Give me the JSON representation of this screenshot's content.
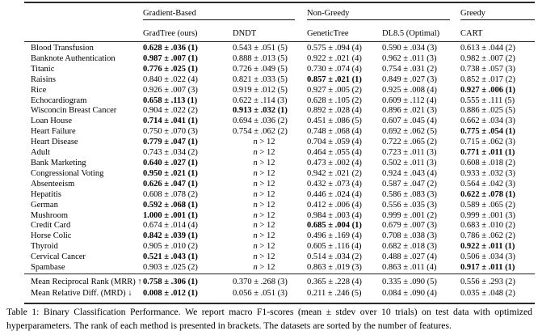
{
  "table": {
    "groups": [
      {
        "label": "Gradient-Based"
      },
      {
        "label": "Non-Greedy"
      },
      {
        "label": "Greedy"
      }
    ],
    "columns": [
      "GradTree (ours)",
      "DNDT",
      "GeneticTree",
      "DL8.5 (Optimal)",
      "CART"
    ],
    "rows": [
      {
        "dataset": "Blood Transfusion",
        "cells": [
          {
            "t": "0.628 ± .036 (1)",
            "b": 1
          },
          {
            "t": "0.543 ± .051 (5)"
          },
          {
            "t": "0.575 ± .094 (4)"
          },
          {
            "t": "0.590 ± .034 (3)"
          },
          {
            "t": "0.613 ± .044 (2)"
          }
        ]
      },
      {
        "dataset": "Banknote Authentication",
        "cells": [
          {
            "t": "0.987 ± .007 (1)",
            "b": 1
          },
          {
            "t": "0.888 ± .013 (5)"
          },
          {
            "t": "0.922 ± .021 (4)"
          },
          {
            "t": "0.962 ± .011 (3)"
          },
          {
            "t": "0.982 ± .007 (2)"
          }
        ]
      },
      {
        "dataset": "Titanic",
        "cells": [
          {
            "t": "0.776 ± .025 (1)",
            "b": 1
          },
          {
            "t": "0.726 ± .049 (5)"
          },
          {
            "t": "0.730 ± .074 (4)"
          },
          {
            "t": "0.754 ± .031 (2)"
          },
          {
            "t": "0.738 ± .057 (3)"
          }
        ]
      },
      {
        "dataset": "Raisins",
        "cells": [
          {
            "t": "0.840 ± .022 (4)"
          },
          {
            "t": "0.821 ± .033 (5)"
          },
          {
            "t": "0.857 ± .021 (1)",
            "b": 1
          },
          {
            "t": "0.849 ± .027 (3)"
          },
          {
            "t": "0.852 ± .017 (2)"
          }
        ]
      },
      {
        "dataset": "Rice",
        "cells": [
          {
            "t": "0.926 ± .007 (3)"
          },
          {
            "t": "0.919 ± .012 (5)"
          },
          {
            "t": "0.927 ± .005 (2)"
          },
          {
            "t": "0.925 ± .008 (4)"
          },
          {
            "t": "0.927 ± .006 (1)",
            "b": 1
          }
        ]
      },
      {
        "dataset": "Echocardiogram",
        "cells": [
          {
            "t": "0.658 ± .113 (1)",
            "b": 1
          },
          {
            "t": "0.622 ± .114 (3)"
          },
          {
            "t": "0.628 ± .105 (2)"
          },
          {
            "t": "0.609 ± .112 (4)"
          },
          {
            "t": "0.555 ± .111 (5)"
          }
        ]
      },
      {
        "dataset": "Wisconcin Breast Cancer",
        "cells": [
          {
            "t": "0.904 ± .022 (2)"
          },
          {
            "t": "0.913 ± .032 (1)",
            "b": 1
          },
          {
            "t": "0.892 ± .028 (4)"
          },
          {
            "t": "0.896 ± .021 (3)"
          },
          {
            "t": "0.886 ± .025 (5)"
          }
        ]
      },
      {
        "dataset": "Loan House",
        "cells": [
          {
            "t": "0.714 ± .041 (1)",
            "b": 1
          },
          {
            "t": "0.694 ± .036 (2)"
          },
          {
            "t": "0.451 ± .086 (5)"
          },
          {
            "t": "0.607 ± .045 (4)"
          },
          {
            "t": "0.662 ± .034 (3)"
          }
        ]
      },
      {
        "dataset": "Heart Failure",
        "cells": [
          {
            "t": "0.750 ± .070 (3)"
          },
          {
            "t": "0.754 ± .062 (2)"
          },
          {
            "t": "0.748 ± .068 (4)"
          },
          {
            "t": "0.692 ± .062 (5)"
          },
          {
            "t": "0.775 ± .054 (1)",
            "b": 1
          }
        ]
      },
      {
        "dataset": "Heart Disease",
        "cells": [
          {
            "t": "0.779 ± .047 (1)",
            "b": 1
          },
          {
            "t": "n > 12",
            "m": 1
          },
          {
            "t": "0.704 ± .059 (4)"
          },
          {
            "t": "0.722 ± .065 (2)"
          },
          {
            "t": "0.715 ± .062 (3)"
          }
        ]
      },
      {
        "dataset": "Adult",
        "cells": [
          {
            "t": "0.743 ± .034 (2)"
          },
          {
            "t": "n > 12",
            "m": 1
          },
          {
            "t": "0.464 ± .055 (4)"
          },
          {
            "t": "0.723 ± .011 (3)"
          },
          {
            "t": "0.771 ± .011 (1)",
            "b": 1
          }
        ]
      },
      {
        "dataset": "Bank Marketing",
        "cells": [
          {
            "t": "0.640 ± .027 (1)",
            "b": 1
          },
          {
            "t": "n > 12",
            "m": 1
          },
          {
            "t": "0.473 ± .002 (4)"
          },
          {
            "t": "0.502 ± .011 (3)"
          },
          {
            "t": "0.608 ± .018 (2)"
          }
        ]
      },
      {
        "dataset": "Congressional Voting",
        "cells": [
          {
            "t": "0.950 ± .021 (1)",
            "b": 1
          },
          {
            "t": "n > 12",
            "m": 1
          },
          {
            "t": "0.942 ± .021 (2)"
          },
          {
            "t": "0.924 ± .043 (4)"
          },
          {
            "t": "0.933 ± .032 (3)"
          }
        ]
      },
      {
        "dataset": "Absenteeism",
        "cells": [
          {
            "t": "0.626 ± .047 (1)",
            "b": 1
          },
          {
            "t": "n > 12",
            "m": 1
          },
          {
            "t": "0.432 ± .073 (4)"
          },
          {
            "t": "0.587 ± .047 (2)"
          },
          {
            "t": "0.564 ± .042 (3)"
          }
        ]
      },
      {
        "dataset": "Hepatitis",
        "cells": [
          {
            "t": "0.608 ± .078 (2)"
          },
          {
            "t": "n > 12",
            "m": 1
          },
          {
            "t": "0.446 ± .024 (4)"
          },
          {
            "t": "0.586 ± .083 (3)"
          },
          {
            "t": "0.622 ± .078 (1)",
            "b": 1
          }
        ]
      },
      {
        "dataset": "German",
        "cells": [
          {
            "t": "0.592 ± .068 (1)",
            "b": 1
          },
          {
            "t": "n > 12",
            "m": 1
          },
          {
            "t": "0.412 ± .006 (4)"
          },
          {
            "t": "0.556 ± .035 (3)"
          },
          {
            "t": "0.589 ± .065 (2)"
          }
        ]
      },
      {
        "dataset": "Mushroom",
        "cells": [
          {
            "t": "1.000 ± .001 (1)",
            "b": 1
          },
          {
            "t": "n > 12",
            "m": 1
          },
          {
            "t": "0.984 ± .003 (4)"
          },
          {
            "t": "0.999 ± .001 (2)"
          },
          {
            "t": "0.999 ± .001 (3)"
          }
        ]
      },
      {
        "dataset": "Credit Card",
        "cells": [
          {
            "t": "0.674 ± .014 (4)"
          },
          {
            "t": "n > 12",
            "m": 1
          },
          {
            "t": "0.685 ± .004 (1)",
            "b": 1
          },
          {
            "t": "0.679 ± .007 (3)"
          },
          {
            "t": "0.683 ± .010 (2)"
          }
        ]
      },
      {
        "dataset": "Horse Colic",
        "cells": [
          {
            "t": "0.842 ± .039 (1)",
            "b": 1
          },
          {
            "t": "n > 12",
            "m": 1
          },
          {
            "t": "0.496 ± .169 (4)"
          },
          {
            "t": "0.708 ± .038 (3)"
          },
          {
            "t": "0.786 ± .062 (2)"
          }
        ]
      },
      {
        "dataset": "Thyroid",
        "cells": [
          {
            "t": "0.905 ± .010 (2)"
          },
          {
            "t": "n > 12",
            "m": 1
          },
          {
            "t": "0.605 ± .116 (4)"
          },
          {
            "t": "0.682 ± .018 (3)"
          },
          {
            "t": "0.922 ± .011 (1)",
            "b": 1
          }
        ]
      },
      {
        "dataset": "Cervical Cancer",
        "cells": [
          {
            "t": "0.521 ± .043 (1)",
            "b": 1
          },
          {
            "t": "n > 12",
            "m": 1
          },
          {
            "t": "0.514 ± .034 (2)"
          },
          {
            "t": "0.488 ± .027 (4)"
          },
          {
            "t": "0.506 ± .034 (3)"
          }
        ]
      },
      {
        "dataset": "Spambase",
        "cells": [
          {
            "t": "0.903 ± .025 (2)"
          },
          {
            "t": "n > 12",
            "m": 1
          },
          {
            "t": "0.863 ± .019 (3)"
          },
          {
            "t": "0.863 ± .011 (4)"
          },
          {
            "t": "0.917 ± .011 (1)",
            "b": 1
          }
        ]
      }
    ],
    "summary_rows": [
      {
        "label": "Mean Reciprocal Rank (MRR) ↑",
        "cells": [
          {
            "t": "0.758 ± .306 (1)",
            "b": 1
          },
          {
            "t": "0.370 ± .268 (3)"
          },
          {
            "t": "0.365 ± .228 (4)"
          },
          {
            "t": "0.335 ± .090 (5)"
          },
          {
            "t": "0.556 ± .293 (2)"
          }
        ]
      },
      {
        "label": "Mean Relative Diff. (MRD) ↓",
        "cells": [
          {
            "t": "0.008 ± .012 (1)",
            "b": 1
          },
          {
            "t": "0.056 ± .051 (3)"
          },
          {
            "t": "0.211 ± .246 (5)"
          },
          {
            "t": "0.084 ± .090 (4)"
          },
          {
            "t": "0.035 ± .048 (2)"
          }
        ]
      }
    ]
  },
  "caption": "Table 1: Binary Classification Performance. We report macro F1-scores (mean ± stdev over 10 trials) on test data with optimized hyperparameters. The rank of each method is presented in brackets. The datasets are sorted by the number of features."
}
